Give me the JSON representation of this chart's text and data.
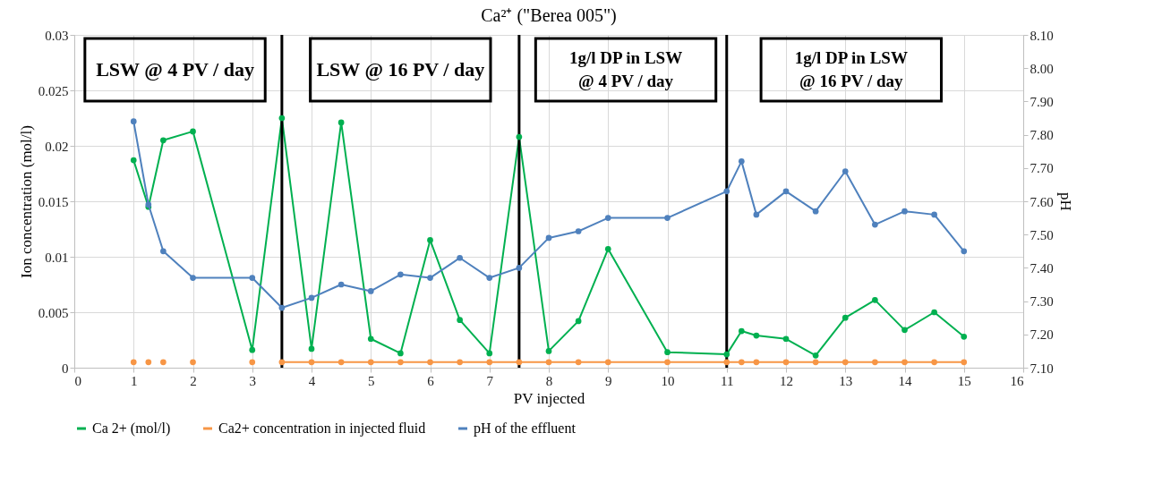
{
  "chart_data": {
    "type": "line",
    "title": "Ca²⁺ (\"Berea 005\")",
    "xlabel": "PV injected",
    "ylabel": "Ion concentration (mol/l)",
    "y2label": "pH",
    "xlim": [
      0,
      16
    ],
    "xticks": [
      0,
      1,
      2,
      3,
      4,
      5,
      6,
      7,
      8,
      9,
      10,
      11,
      12,
      13,
      14,
      15,
      16
    ],
    "ylim": [
      0,
      0.03
    ],
    "yticks": [
      0,
      0.005,
      0.01,
      0.015,
      0.02,
      0.025,
      0.03
    ],
    "y2lim": [
      7.1,
      8.1
    ],
    "y2ticks": [
      {
        "value": 7.1,
        "label": "7.10"
      },
      {
        "value": 7.2,
        "label": "7.20"
      },
      {
        "value": 7.3,
        "label": "7.30"
      },
      {
        "value": 7.4,
        "label": "7.40"
      },
      {
        "value": 7.5,
        "label": "7.50"
      },
      {
        "value": 7.6,
        "label": "7.60"
      },
      {
        "value": 7.7,
        "label": "7.70"
      },
      {
        "value": 7.8,
        "label": "7.80"
      },
      {
        "value": 7.9,
        "label": "7.90"
      },
      {
        "value": 8.0,
        "label": "8.00"
      },
      {
        "value": 8.1,
        "label": "8.10"
      }
    ],
    "grid": true,
    "legend": "bottom",
    "marker": "circle",
    "line_style": "solid",
    "series": [
      {
        "name": "Ca 2+ (mol/l)",
        "color": "#00b050",
        "x": [
          1,
          1.25,
          1.5,
          2,
          3,
          3.5,
          4,
          4.5,
          5,
          5.5,
          6,
          6.5,
          7,
          7.5,
          8,
          8.5,
          9,
          10,
          11,
          11.25,
          11.5,
          12,
          12.5,
          13,
          13.5,
          14,
          14.5,
          15
        ],
        "values": [
          0.0187,
          0.0145,
          0.0205,
          0.0213,
          0.0016,
          0.0225,
          0.0017,
          0.0221,
          0.0026,
          0.0013,
          0.0115,
          0.0043,
          0.0013,
          0.0208,
          0.0015,
          0.0042,
          0.0107,
          0.0014,
          0.0012,
          0.0033,
          0.0029,
          0.0026,
          0.0011,
          0.0045,
          0.0061,
          0.0034,
          0.005,
          0.0028
        ]
      },
      {
        "name": "Ca2+ concentration in injected fluid",
        "color": "#f79646",
        "x": [
          3.5,
          4,
          4.5,
          5,
          5.5,
          6,
          6.5,
          7,
          7.5,
          8,
          8.5,
          9,
          10,
          11,
          11.25,
          11.5,
          12,
          12.5,
          13,
          13.5,
          14,
          14.5,
          15
        ],
        "values": [
          0.0005,
          0.0005,
          0.0005,
          0.0005,
          0.0005,
          0.0005,
          0.0005,
          0.0005,
          0.0005,
          0.0005,
          0.0005,
          0.0005,
          0.0005,
          0.0005,
          0.0005,
          0.0005,
          0.0005,
          0.0005,
          0.0005,
          0.0005,
          0.0005,
          0.0005,
          0.0005
        ]
      },
      {
        "type": "scatter",
        "color": "#f79646",
        "x": [
          1,
          1.25,
          1.5,
          2,
          3
        ],
        "values": [
          0.0005,
          0.0005,
          0.0005,
          0.0005,
          0.0005
        ]
      },
      {
        "name": "pH of the effluent",
        "color": "#4f81bd",
        "axis": "y2",
        "x": [
          1,
          1.25,
          1.5,
          2,
          3,
          3.5,
          4,
          4.5,
          5,
          5.5,
          6,
          6.5,
          7,
          7.5,
          8,
          8.5,
          9,
          10,
          11,
          11.25,
          11.5,
          12,
          12.5,
          13,
          13.5,
          14,
          14.5,
          15
        ],
        "values": [
          7.84,
          7.59,
          7.45,
          7.37,
          7.37,
          7.28,
          7.31,
          7.35,
          7.33,
          7.38,
          7.37,
          7.43,
          7.37,
          7.4,
          7.49,
          7.51,
          7.55,
          7.55,
          7.63,
          7.72,
          7.56,
          7.63,
          7.57,
          7.69,
          7.53,
          7.57,
          7.56,
          7.45
        ]
      }
    ],
    "ref_lines": [
      {
        "axis": "x",
        "value": 3.5,
        "color": "#000000"
      },
      {
        "axis": "x",
        "value": 7.5,
        "color": "#000000"
      },
      {
        "axis": "x",
        "value": 11,
        "color": "#000000"
      }
    ],
    "annotations": [
      "LSW @ 4 PV / day",
      "LSW @ 16 PV / day",
      "1g/l DP in LSW\n@ 4 PV / day",
      "1g/l DP in LSW\n@ 16 PV / day"
    ]
  }
}
